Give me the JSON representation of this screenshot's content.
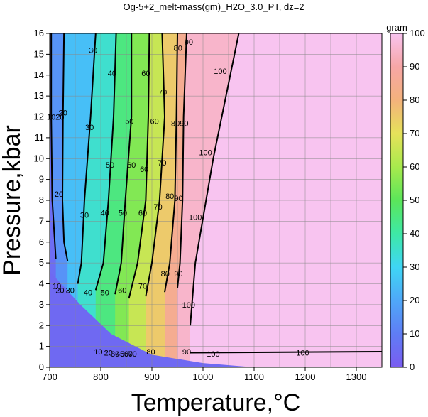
{
  "chart_data": {
    "type": "heatmap",
    "title": "Og-5+2_melt-mass(gm)_H2O_3.0_PT, dz=2",
    "xlabel": "Temperature,°C",
    "ylabel": "Pressure,kbar",
    "xlim": [
      700,
      1350
    ],
    "ylim": [
      0,
      16
    ],
    "x_ticks": [
      "700",
      "800",
      "900",
      "1000",
      "1100",
      "1200",
      "1300"
    ],
    "y_ticks": [
      "0",
      "1",
      "2",
      "3",
      "4",
      "5",
      "6",
      "7",
      "8",
      "9",
      "10",
      "11",
      "12",
      "13",
      "14",
      "15",
      "16"
    ],
    "grid": true,
    "colorbar": {
      "unit": "gram",
      "range": [
        0,
        100
      ],
      "ticks": [
        "0",
        "10",
        "20",
        "30",
        "40",
        "50",
        "60",
        "70",
        "80",
        "90",
        "100"
      ]
    },
    "contour_interval": 2,
    "major_contour_interval": 10,
    "contours": [
      {
        "level": 10,
        "points": [
          [
            703,
            16
          ],
          [
            703,
            12
          ],
          [
            705,
            8
          ],
          [
            712,
            5.2
          ]
        ]
      },
      {
        "level": 20,
        "points": [
          [
            728,
            16
          ],
          [
            726,
            12
          ],
          [
            725,
            8
          ],
          [
            728,
            6
          ],
          [
            735,
            5.1
          ]
        ]
      },
      {
        "level": 30,
        "points": [
          [
            790,
            16
          ],
          [
            780,
            12
          ],
          [
            768,
            8
          ],
          [
            762,
            5
          ],
          [
            755,
            4
          ]
        ]
      },
      {
        "level": 40,
        "points": [
          [
            830,
            16
          ],
          [
            825,
            12
          ],
          [
            815,
            8
          ],
          [
            805,
            5
          ],
          [
            790,
            3.7
          ]
        ]
      },
      {
        "level": 50,
        "points": [
          [
            860,
            16
          ],
          [
            860,
            12
          ],
          [
            848,
            8
          ],
          [
            840,
            5
          ],
          [
            828,
            3.5
          ]
        ]
      },
      {
        "level": 60,
        "points": [
          [
            895,
            16
          ],
          [
            893,
            12
          ],
          [
            888,
            8
          ],
          [
            872,
            5
          ],
          [
            855,
            3.3
          ]
        ]
      },
      {
        "level": 70,
        "points": [
          [
            920,
            16
          ],
          [
            925,
            12
          ],
          [
            915,
            8
          ],
          [
            900,
            5
          ],
          [
            888,
            3.4
          ]
        ]
      },
      {
        "level": 80,
        "points": [
          [
            950,
            16
          ],
          [
            948,
            12
          ],
          [
            945,
            8
          ],
          [
            935,
            5
          ],
          [
            925,
            3.6
          ]
        ]
      },
      {
        "level": 90,
        "points": [
          [
            968,
            16
          ],
          [
            962,
            12
          ],
          [
            960,
            8
          ],
          [
            955,
            5
          ],
          [
            950,
            3.8
          ]
        ]
      },
      {
        "level": 100,
        "points": [
          [
            1070,
            16
          ],
          [
            1020,
            10
          ],
          [
            985,
            5
          ],
          [
            975,
            2
          ]
        ]
      }
    ],
    "contour_labels": [
      {
        "text": "10",
        "x": 703,
        "y": 12
      },
      {
        "text": "20",
        "x": 726,
        "y": 12.2
      },
      {
        "text": "30",
        "x": 785,
        "y": 15.2
      },
      {
        "text": "40",
        "x": 822,
        "y": 14.1
      },
      {
        "text": "60",
        "x": 888,
        "y": 14.1
      },
      {
        "text": "70",
        "x": 921,
        "y": 13.2
      },
      {
        "text": "80",
        "x": 951,
        "y": 15.3
      },
      {
        "text": "90",
        "x": 972,
        "y": 15.6
      },
      {
        "text": "100",
        "x": 1034,
        "y": 14.2
      },
      {
        "text": "20",
        "x": 720,
        "y": 12.0
      },
      {
        "text": "30",
        "x": 778,
        "y": 11.5
      },
      {
        "text": "50",
        "x": 856,
        "y": 11.8
      },
      {
        "text": "60",
        "x": 905,
        "y": 11.8
      },
      {
        "text": "80",
        "x": 946,
        "y": 11.7
      },
      {
        "text": "90",
        "x": 963,
        "y": 11.7
      },
      {
        "text": "100",
        "x": 1005,
        "y": 10.3
      },
      {
        "text": "50",
        "x": 818,
        "y": 9.7
      },
      {
        "text": "60",
        "x": 860,
        "y": 9.7
      },
      {
        "text": "60",
        "x": 885,
        "y": 9.5
      },
      {
        "text": "70",
        "x": 920,
        "y": 9.8
      },
      {
        "text": "20",
        "x": 718,
        "y": 8.3
      },
      {
        "text": "30",
        "x": 768,
        "y": 7.3
      },
      {
        "text": "40",
        "x": 808,
        "y": 7.4
      },
      {
        "text": "50",
        "x": 843,
        "y": 7.4
      },
      {
        "text": "60",
        "x": 882,
        "y": 7.4
      },
      {
        "text": "70",
        "x": 912,
        "y": 7.7
      },
      {
        "text": "80",
        "x": 935,
        "y": 8.2
      },
      {
        "text": "90",
        "x": 952,
        "y": 8.1
      },
      {
        "text": "100",
        "x": 985,
        "y": 7.2
      },
      {
        "text": "80",
        "x": 926,
        "y": 4.5
      },
      {
        "text": "90",
        "x": 952,
        "y": 4.5
      },
      {
        "text": "40",
        "x": 775,
        "y": 3.6
      },
      {
        "text": "50",
        "x": 808,
        "y": 3.6
      },
      {
        "text": "60",
        "x": 842,
        "y": 3.7
      },
      {
        "text": "70",
        "x": 882,
        "y": 3.9
      },
      {
        "text": "100",
        "x": 972,
        "y": 3.0
      },
      {
        "text": "10",
        "x": 714,
        "y": 3.9
      },
      {
        "text": "20",
        "x": 720,
        "y": 3.7
      },
      {
        "text": "30",
        "x": 740,
        "y": 3.7
      },
      {
        "text": "10",
        "x": 795,
        "y": 0.75
      },
      {
        "text": "20",
        "x": 815,
        "y": 0.7
      },
      {
        "text": "30",
        "x": 828,
        "y": 0.65
      },
      {
        "text": "40",
        "x": 838,
        "y": 0.65
      },
      {
        "text": "50",
        "x": 846,
        "y": 0.65
      },
      {
        "text": "60",
        "x": 854,
        "y": 0.65
      },
      {
        "text": "70",
        "x": 862,
        "y": 0.65
      },
      {
        "text": "80",
        "x": 898,
        "y": 0.75
      },
      {
        "text": "90",
        "x": 968,
        "y": 0.75
      },
      {
        "text": "100",
        "x": 1020,
        "y": 0.65
      },
      {
        "text": "100",
        "x": 1195,
        "y": 0.7
      }
    ]
  }
}
